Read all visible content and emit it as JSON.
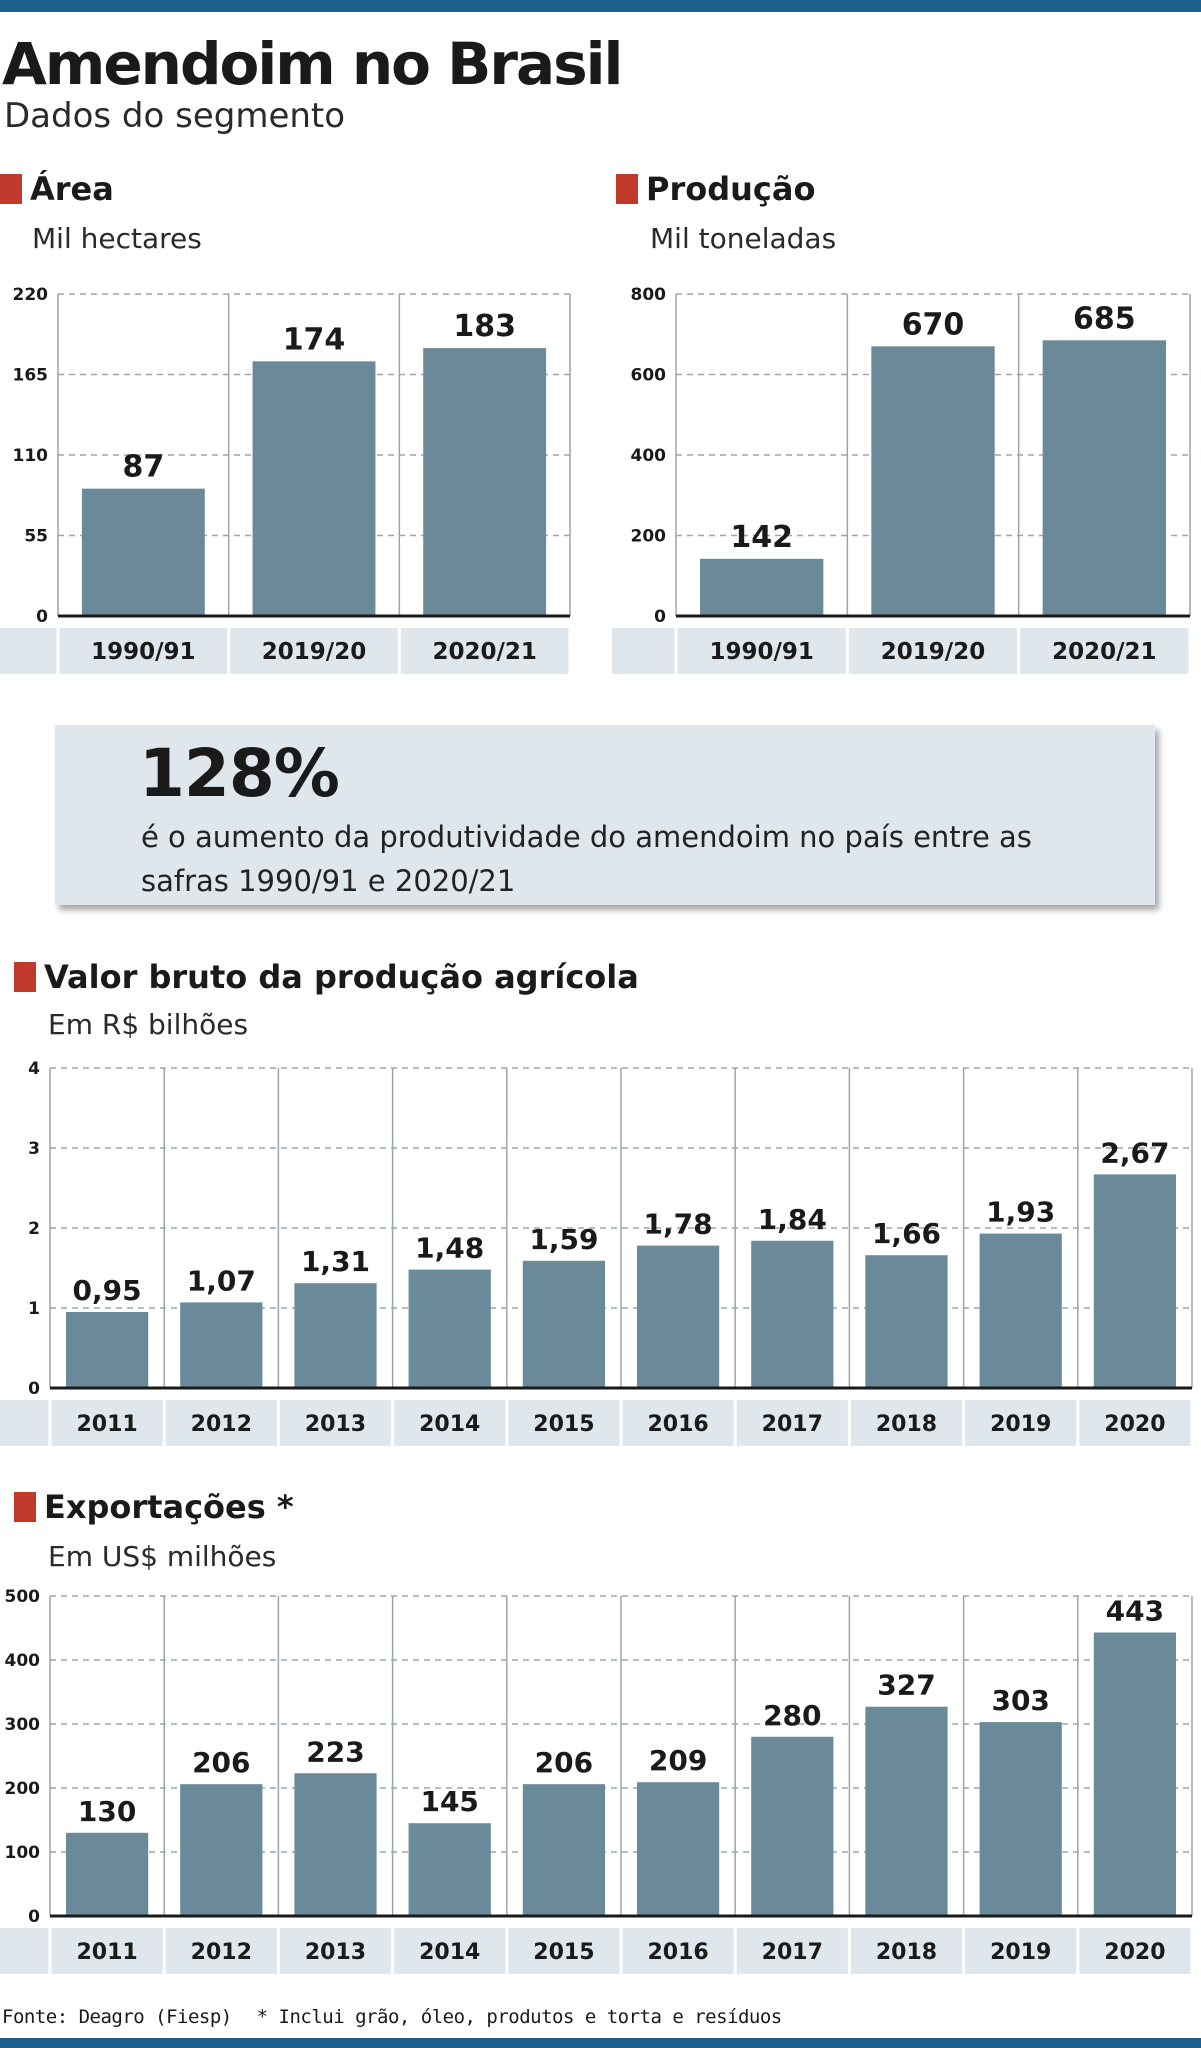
{
  "header": {
    "title": "Amendoim no Brasil",
    "subtitle": "Dados do segmento"
  },
  "callout": {
    "value": "128%",
    "text": "é o aumento da produtividade do amendoim no país entre as safras 1990/91 e 2020/21"
  },
  "footer": {
    "source": "Fonte: Deagro (Fiesp)",
    "note": "* Inclui grão, óleo, produtos e torta e resíduos"
  },
  "colors": {
    "bar": "#6b8a99",
    "band": "#dfe6ec",
    "accent": "#c0392b",
    "grid": "#9aa5ad"
  },
  "chart_data": [
    {
      "id": "area",
      "type": "bar",
      "title": "Área",
      "ylabel": "Mil hectares",
      "categories": [
        "1990/91",
        "2019/20",
        "2020/21"
      ],
      "values": [
        87,
        174,
        183
      ],
      "value_labels": [
        "87",
        "174",
        "183"
      ],
      "yticks": [
        0,
        55,
        110,
        165,
        220
      ],
      "ylim": [
        0,
        220
      ],
      "grid": true
    },
    {
      "id": "producao",
      "type": "bar",
      "title": "Produção",
      "ylabel": "Mil toneladas",
      "categories": [
        "1990/91",
        "2019/20",
        "2020/21"
      ],
      "values": [
        142,
        670,
        685
      ],
      "value_labels": [
        "142",
        "670",
        "685"
      ],
      "yticks": [
        0,
        200,
        400,
        600,
        800
      ],
      "ylim": [
        0,
        800
      ],
      "grid": true
    },
    {
      "id": "valor",
      "type": "bar",
      "title": "Valor bruto da produção agrícola",
      "ylabel": "Em R$ bilhões",
      "categories": [
        "2011",
        "2012",
        "2013",
        "2014",
        "2015",
        "2016",
        "2017",
        "2018",
        "2019",
        "2020"
      ],
      "values": [
        0.95,
        1.07,
        1.31,
        1.48,
        1.59,
        1.78,
        1.84,
        1.66,
        1.93,
        2.67
      ],
      "value_labels": [
        "0,95",
        "1,07",
        "1,31",
        "1,48",
        "1,59",
        "1,78",
        "1,84",
        "1,66",
        "1,93",
        "2,67"
      ],
      "yticks": [
        0,
        1,
        2,
        3,
        4
      ],
      "ylim": [
        0,
        4
      ],
      "grid": true
    },
    {
      "id": "exportacoes",
      "type": "bar",
      "title": "Exportações *",
      "ylabel": "Em US$ milhões",
      "categories": [
        "2011",
        "2012",
        "2013",
        "2014",
        "2015",
        "2016",
        "2017",
        "2018",
        "2019",
        "2020"
      ],
      "values": [
        130,
        206,
        223,
        145,
        206,
        209,
        280,
        327,
        303,
        443
      ],
      "value_labels": [
        "130",
        "206",
        "223",
        "145",
        "206",
        "209",
        "280",
        "327",
        "303",
        "443"
      ],
      "yticks": [
        0,
        100,
        200,
        300,
        400,
        500
      ],
      "ylim": [
        0,
        500
      ],
      "grid": true
    }
  ]
}
